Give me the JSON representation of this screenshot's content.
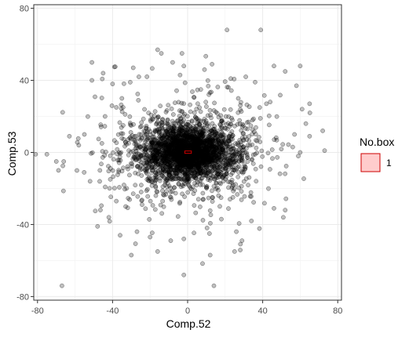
{
  "chart_data": {
    "type": "scatter",
    "title": "",
    "xlabel": "Comp.52",
    "ylabel": "Comp.53",
    "xlim": [
      -82,
      82
    ],
    "ylim": [
      -82,
      82
    ],
    "xticks": [
      -80,
      -40,
      0,
      40,
      80
    ],
    "yticks": [
      -80,
      -40,
      0,
      40,
      80
    ],
    "grid": true,
    "point_color": "#000000",
    "point_alpha": 0.25,
    "legend": {
      "title": "No.box",
      "placement": "right",
      "entries": [
        {
          "label": "1",
          "fill": "#ffcccc",
          "stroke": "#cc0000"
        }
      ]
    },
    "box": {
      "xmin": -1.5,
      "xmax": 2,
      "ymin": -0.5,
      "ymax": 0.8,
      "color": "#cc0000"
    },
    "core_cloud": {
      "description_count": 3000,
      "x_sd": 12,
      "y_sd": 7
    },
    "series": [
      {
        "values_outer": [
          [
            -67,
            -74
          ],
          [
            -2,
            -68
          ],
          [
            14,
            -74
          ],
          [
            -30,
            -57
          ],
          [
            -16,
            -55
          ],
          [
            -9,
            -49
          ],
          [
            -2,
            -48
          ],
          [
            12,
            -57
          ],
          [
            25,
            -55
          ],
          [
            29,
            -49
          ],
          [
            -48,
            -41
          ],
          [
            -42,
            -36
          ],
          [
            -36,
            -46
          ],
          [
            -27,
            -44
          ],
          [
            -20,
            -47
          ],
          [
            34,
            -38
          ],
          [
            46,
            -31
          ],
          [
            51,
            -36
          ],
          [
            52,
            -32
          ],
          [
            -52,
            -16
          ],
          [
            -59,
            -10
          ],
          [
            -66,
            -5
          ],
          [
            -70,
            -5
          ],
          [
            -75,
            -1
          ],
          [
            -81,
            -1
          ],
          [
            -63,
            9
          ],
          [
            -55,
            10
          ],
          [
            -58,
            4
          ],
          [
            56,
            3
          ],
          [
            59,
            -2
          ],
          [
            60,
            0
          ],
          [
            57,
            10
          ],
          [
            63,
            16
          ],
          [
            65,
            9
          ],
          [
            73,
            1
          ],
          [
            72,
            12
          ],
          [
            -51,
            50
          ],
          [
            -51,
            40
          ],
          [
            -45,
            44
          ],
          [
            -40,
            38
          ],
          [
            -29,
            47
          ],
          [
            -26,
            42
          ],
          [
            -16,
            57
          ],
          [
            -14,
            55
          ],
          [
            -8,
            50
          ],
          [
            -3,
            55
          ],
          [
            -2,
            48
          ],
          [
            -4,
            43
          ],
          [
            21,
            68
          ],
          [
            39,
            68
          ],
          [
            60,
            48
          ],
          [
            52,
            45
          ],
          [
            46,
            48
          ],
          [
            58,
            37
          ],
          [
            44,
            28
          ],
          [
            42,
            27
          ],
          [
            65,
            27
          ],
          [
            61,
            24
          ],
          [
            9,
            46
          ],
          [
            13,
            49
          ],
          [
            23,
            41
          ],
          [
            31,
            42
          ],
          [
            36,
            39
          ],
          [
            27,
            30
          ],
          [
            -35,
            30
          ],
          [
            -38,
            25
          ],
          [
            -44,
            20
          ],
          [
            -33,
            -30
          ],
          [
            -38,
            -27
          ],
          [
            26,
            -44
          ],
          [
            18,
            -37
          ]
        ]
      }
    ]
  }
}
